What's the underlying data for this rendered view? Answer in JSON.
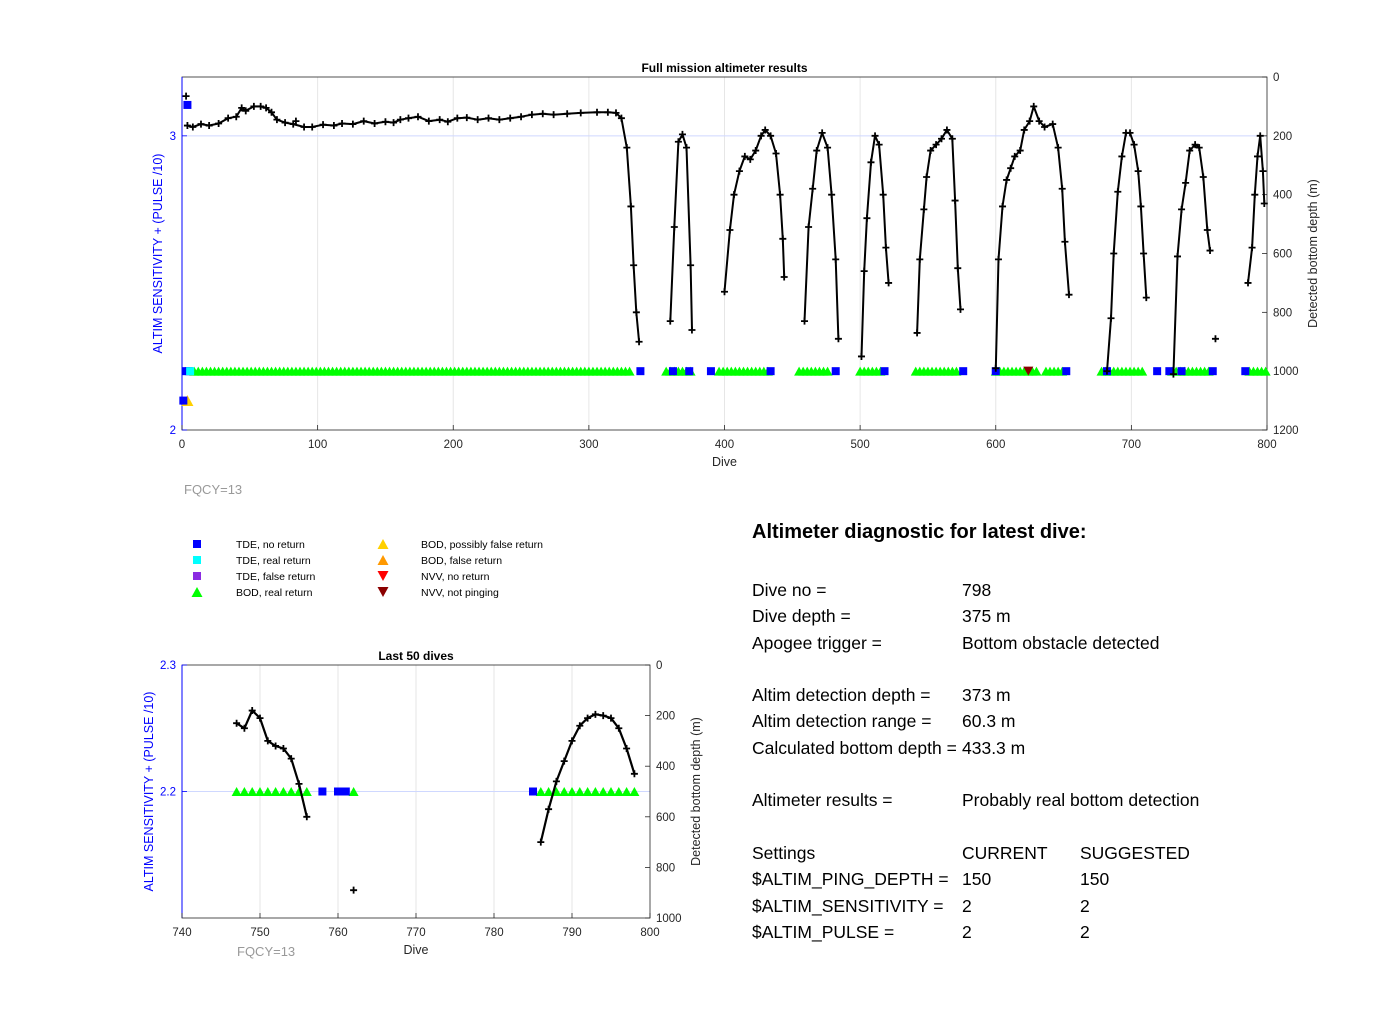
{
  "colors": {
    "left_axis": "#0000ff",
    "fqcy": "#999999",
    "depth_line": "#000000",
    "tde_no_return": "#0000ff",
    "tde_real_return": "#00ffff",
    "tde_false_return": "#8b2be2",
    "bod_real_return": "#00ff00",
    "bod_possibly_false": "#ffd000",
    "bod_false_return": "#ff9900",
    "nvv_no_return": "#ff0000",
    "nvv_not_pinging": "#8b0000"
  },
  "fqcy_label": "FQCY=13",
  "legend": [
    {
      "label": "TDE, no return",
      "marker": "square",
      "color": "#0000ff"
    },
    {
      "label": "TDE, real return",
      "marker": "square",
      "color": "#00ffff"
    },
    {
      "label": "TDE, false return",
      "marker": "square",
      "color": "#8b2be2"
    },
    {
      "label": "BOD, real return",
      "marker": "triangle-up",
      "color": "#00ff00"
    },
    {
      "label": "BOD, possibly false return",
      "marker": "triangle-up",
      "color": "#ffd000"
    },
    {
      "label": "BOD, false return",
      "marker": "triangle-up",
      "color": "#ff9900"
    },
    {
      "label": "NVV, no return",
      "marker": "triangle-down",
      "color": "#ff0000"
    },
    {
      "label": "NVV, not pinging",
      "marker": "triangle-down",
      "color": "#8b0000"
    }
  ],
  "chart_data": [
    {
      "type": "line",
      "title": "Full mission altimeter results",
      "xlabel": "Dive",
      "ylabel_left": "ALTIM SENSITIVITY + (PULSE /10)",
      "ylabel_right": "Detected bottom depth (m)",
      "xlim": [
        0,
        800
      ],
      "xticks": [
        0,
        100,
        200,
        300,
        400,
        500,
        600,
        700,
        800
      ],
      "ylim_left": [
        2,
        3.2
      ],
      "yticks_left": [
        2,
        3
      ],
      "ylim_right": [
        0,
        1200
      ],
      "yticks_right": [
        0,
        200,
        400,
        600,
        800,
        1000,
        1200
      ],
      "right_reversed": true,
      "grid": true,
      "depth_segments": [
        [
          [
            4,
            165
          ],
          [
            8,
            170
          ],
          [
            14,
            160
          ],
          [
            20,
            165
          ],
          [
            27,
            158
          ],
          [
            34,
            140
          ],
          [
            40,
            135
          ],
          [
            44,
            105
          ],
          [
            47,
            115
          ],
          [
            53,
            100
          ],
          [
            58,
            100
          ],
          [
            62,
            105
          ],
          [
            66,
            120
          ],
          [
            70,
            145
          ],
          [
            76,
            155
          ],
          [
            82,
            160
          ],
          [
            90,
            170
          ],
          [
            96,
            170
          ],
          [
            104,
            162
          ],
          [
            112,
            165
          ],
          [
            118,
            158
          ],
          [
            126,
            160
          ],
          [
            134,
            150
          ],
          [
            142,
            158
          ],
          [
            150,
            152
          ],
          [
            156,
            155
          ],
          [
            161,
            145
          ],
          [
            167,
            140
          ],
          [
            174,
            135
          ],
          [
            182,
            150
          ],
          [
            190,
            145
          ],
          [
            196,
            152
          ],
          [
            203,
            140
          ],
          [
            210,
            138
          ],
          [
            218,
            145
          ],
          [
            226,
            140
          ],
          [
            234,
            145
          ],
          [
            242,
            140
          ],
          [
            250,
            135
          ],
          [
            258,
            128
          ],
          [
            266,
            125
          ],
          [
            274,
            128
          ],
          [
            284,
            125
          ],
          [
            294,
            122
          ],
          [
            306,
            120
          ],
          [
            314,
            120
          ],
          [
            320,
            122
          ],
          [
            324,
            140
          ],
          [
            328,
            240
          ],
          [
            331,
            440
          ],
          [
            333,
            640
          ],
          [
            335,
            800
          ],
          [
            337,
            900
          ]
        ],
        [
          [
            360,
            830
          ],
          [
            363,
            510
          ],
          [
            366,
            220
          ],
          [
            369,
            195
          ],
          [
            372,
            240
          ],
          [
            375,
            640
          ],
          [
            376,
            860
          ]
        ],
        [
          [
            400,
            730
          ],
          [
            404,
            520
          ],
          [
            407,
            400
          ],
          [
            411,
            320
          ],
          [
            415,
            270
          ],
          [
            419,
            280
          ],
          [
            423,
            250
          ],
          [
            427,
            200
          ],
          [
            430,
            180
          ],
          [
            434,
            200
          ],
          [
            438,
            260
          ],
          [
            441,
            400
          ],
          [
            443,
            550
          ],
          [
            444,
            680
          ]
        ],
        [
          [
            459,
            830
          ],
          [
            462,
            510
          ],
          [
            465,
            380
          ],
          [
            468,
            250
          ],
          [
            472,
            190
          ],
          [
            476,
            240
          ],
          [
            479,
            400
          ],
          [
            482,
            620
          ],
          [
            484,
            890
          ]
        ],
        [
          [
            501,
            950
          ],
          [
            503,
            660
          ],
          [
            505,
            480
          ],
          [
            508,
            290
          ],
          [
            511,
            200
          ],
          [
            514,
            230
          ],
          [
            517,
            400
          ],
          [
            519,
            580
          ],
          [
            521,
            700
          ]
        ],
        [
          [
            542,
            870
          ],
          [
            544,
            620
          ],
          [
            547,
            450
          ],
          [
            549,
            340
          ],
          [
            552,
            250
          ],
          [
            556,
            230
          ],
          [
            560,
            210
          ],
          [
            564,
            180
          ],
          [
            568,
            210
          ],
          [
            570,
            420
          ],
          [
            572,
            650
          ],
          [
            574,
            790
          ]
        ],
        [
          [
            600,
            990
          ],
          [
            602,
            620
          ],
          [
            605,
            440
          ],
          [
            608,
            350
          ],
          [
            611,
            310
          ],
          [
            614,
            270
          ],
          [
            618,
            250
          ],
          [
            621,
            180
          ],
          [
            625,
            150
          ],
          [
            628,
            100
          ],
          [
            632,
            150
          ],
          [
            636,
            170
          ],
          [
            642,
            160
          ],
          [
            646,
            240
          ],
          [
            649,
            380
          ],
          [
            651,
            560
          ],
          [
            654,
            740
          ]
        ],
        [
          [
            682,
            1000
          ],
          [
            685,
            820
          ],
          [
            687,
            600
          ],
          [
            690,
            390
          ],
          [
            693,
            270
          ],
          [
            696,
            190
          ],
          [
            699,
            190
          ],
          [
            702,
            230
          ],
          [
            705,
            320
          ],
          [
            707,
            440
          ],
          [
            709,
            600
          ],
          [
            711,
            750
          ]
        ],
        [
          [
            731,
            1010
          ],
          [
            734,
            610
          ],
          [
            737,
            450
          ],
          [
            740,
            360
          ],
          [
            743,
            250
          ],
          [
            747,
            230
          ],
          [
            750,
            240
          ],
          [
            753,
            340
          ],
          [
            756,
            520
          ],
          [
            758,
            590
          ]
        ],
        [
          [
            786,
            700
          ],
          [
            789,
            580
          ],
          [
            791,
            400
          ],
          [
            793,
            270
          ],
          [
            795,
            200
          ],
          [
            797,
            320
          ],
          [
            798,
            430
          ]
        ]
      ],
      "isolated_depths": [
        [
          3,
          65
        ],
        [
          84,
          150
        ],
        [
          762,
          890
        ]
      ],
      "tde_no_return_dives": [
        3,
        5,
        338,
        362,
        374,
        390,
        434,
        482,
        518,
        576,
        600,
        652,
        682,
        719,
        728,
        737,
        760,
        784
      ],
      "tde_real_return_dives": [
        6
      ],
      "bod_real_return_ranges": [
        [
          9,
          331
        ],
        [
          357,
          375
        ],
        [
          396,
          432
        ],
        [
          455,
          476
        ],
        [
          500,
          516
        ],
        [
          541,
          572
        ],
        [
          600,
          632
        ],
        [
          637,
          650
        ],
        [
          678,
          708
        ],
        [
          730,
          758
        ],
        [
          787,
          800
        ]
      ],
      "bod_possibly_false_points": [
        [
          4,
          2.1
        ]
      ],
      "nvv_not_pinging_points": [
        [
          624,
          1000
        ]
      ]
    },
    {
      "type": "line",
      "title": "Last 50 dives",
      "xlabel": "Dive",
      "ylabel_left": "ALTIM SENSITIVITY + (PULSE /10)",
      "ylabel_right": "Detected bottom depth (m)",
      "xlim": [
        740,
        800
      ],
      "xticks": [
        740,
        750,
        760,
        770,
        780,
        790,
        800
      ],
      "ylim_left": [
        2.1,
        2.3
      ],
      "yticks_left": [
        2.2,
        2.3
      ],
      "ylim_right": [
        0,
        1000
      ],
      "yticks_right": [
        0,
        200,
        400,
        600,
        800,
        1000
      ],
      "right_reversed": true,
      "grid": true,
      "depth_segments": [
        [
          [
            747,
            230
          ],
          [
            748,
            250
          ],
          [
            749,
            180
          ],
          [
            750,
            210
          ],
          [
            751,
            300
          ],
          [
            752,
            320
          ],
          [
            753,
            330
          ],
          [
            754,
            370
          ],
          [
            755,
            470
          ],
          [
            756,
            600
          ]
        ],
        [
          [
            786,
            700
          ],
          [
            787,
            570
          ],
          [
            788,
            460
          ],
          [
            789,
            380
          ],
          [
            790,
            300
          ],
          [
            791,
            240
          ],
          [
            792,
            210
          ],
          [
            793,
            195
          ],
          [
            794,
            200
          ],
          [
            795,
            210
          ],
          [
            796,
            250
          ],
          [
            797,
            330
          ],
          [
            798,
            430
          ]
        ]
      ],
      "isolated_depths": [
        [
          762,
          890
        ]
      ],
      "tde_no_return_dives": [
        758,
        760,
        761,
        785
      ],
      "bod_real_return_ranges": [
        [
          747,
          756
        ],
        [
          762,
          762
        ],
        [
          786,
          798
        ]
      ]
    }
  ],
  "diagnostic": {
    "title": "Altimeter diagnostic for latest dive:",
    "dive_no_label": "Dive no =",
    "dive_no": "798",
    "dive_depth_label": "Dive depth =",
    "dive_depth": "375 m",
    "apogee_label": "Apogee trigger =",
    "apogee": "Bottom obstacle detected",
    "altim_depth_label": "Altim detection depth =",
    "altim_depth": "373 m",
    "altim_range_label": "Altim detection range =",
    "altim_range": "60.3 m",
    "calc_bottom_label": "Calculated bottom depth =",
    "calc_bottom": "433.3 m",
    "results_label": "Altimeter results =",
    "results": "Probably real bottom detection",
    "settings_label": "Settings",
    "current_label": "CURRENT",
    "suggested_label": "SUGGESTED",
    "ping_depth_label": "$ALTIM_PING_DEPTH =",
    "ping_depth_current": "150",
    "ping_depth_suggested": "150",
    "sensitivity_label": "$ALTIM_SENSITIVITY =",
    "sensitivity_current": "2",
    "sensitivity_suggested": "2",
    "pulse_label": "$ALTIM_PULSE =",
    "pulse_current": "2",
    "pulse_suggested": "2"
  }
}
